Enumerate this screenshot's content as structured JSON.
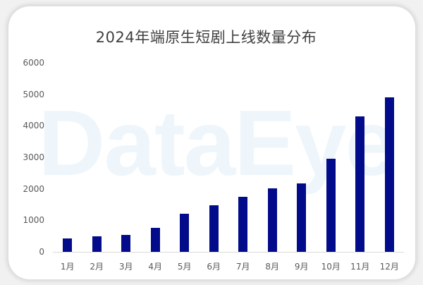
{
  "chart_data": {
    "type": "bar",
    "title": "2024年端原生短剧上线数量分布",
    "xlabel": "",
    "ylabel": "",
    "categories": [
      "1月",
      "2月",
      "3月",
      "4月",
      "5月",
      "6月",
      "7月",
      "8月",
      "9月",
      "10月",
      "11月",
      "12月"
    ],
    "values": [
      425,
      490,
      535,
      770,
      1215,
      1475,
      1740,
      2015,
      2180,
      2960,
      4300,
      4905
    ],
    "ylim": [
      0,
      6000
    ],
    "yticks": [
      "6000",
      "5000",
      "4000",
      "3000",
      "2000",
      "1000",
      "0"
    ],
    "grid": false,
    "legend": null,
    "bar_color": "#020b8a"
  },
  "watermark": "DataEye"
}
